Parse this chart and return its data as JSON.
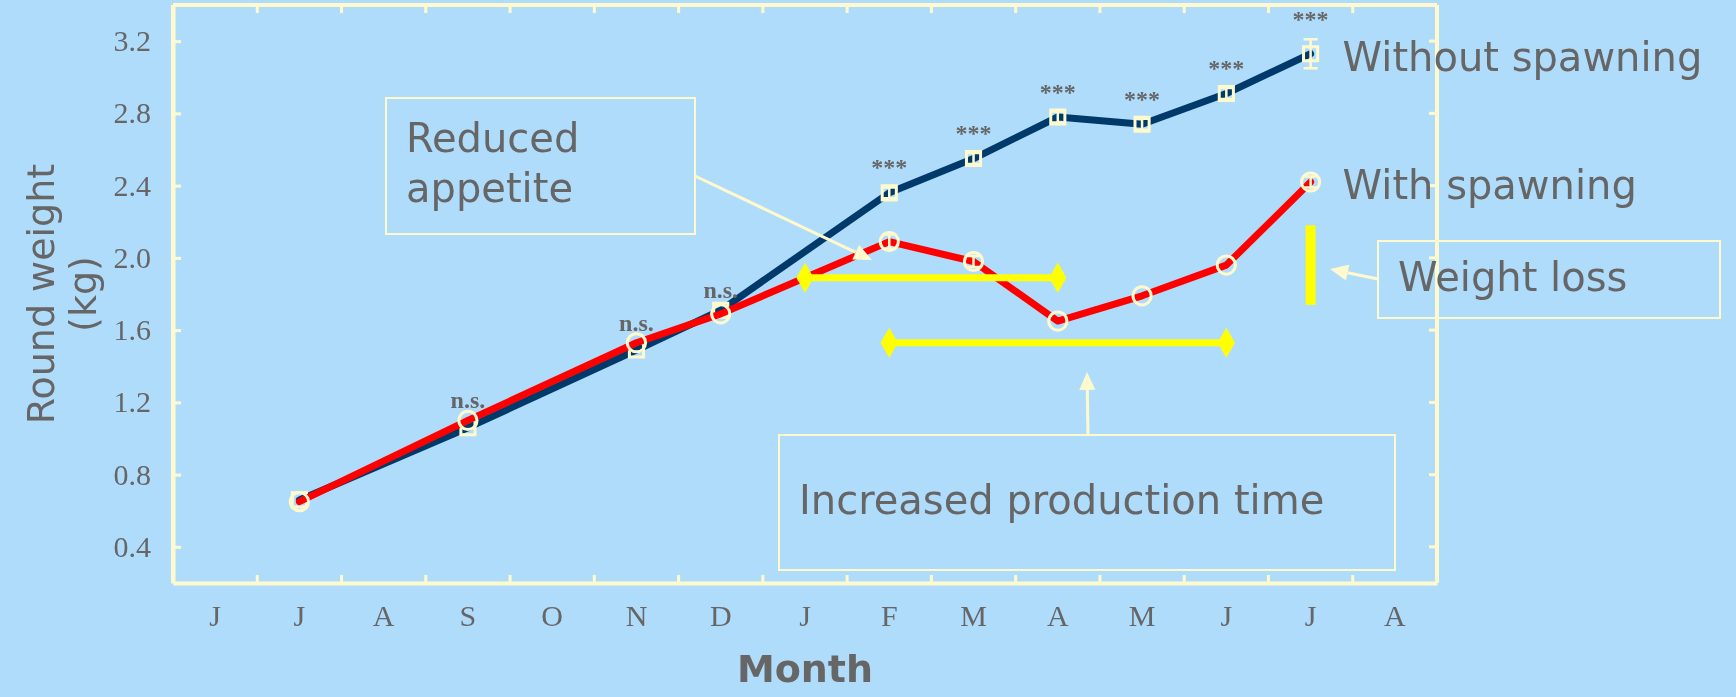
{
  "chart_data": {
    "type": "line",
    "xlabel": "Month",
    "ylabel": "Round weight (kg)",
    "categories": [
      "J",
      "J",
      "A",
      "S",
      "O",
      "N",
      "D",
      "J",
      "F",
      "M",
      "A",
      "M",
      "J",
      "J",
      "A"
    ],
    "ylim": [
      0.2,
      3.4
    ],
    "yticks": [
      0.4,
      0.8,
      1.2,
      1.6,
      {
        "value": 2,
        "label": "2.0"
      },
      2.4,
      2.8,
      3.2
    ],
    "grid": false,
    "legend": "right",
    "series": [
      {
        "name": "Without spawning",
        "color": "#003a6b",
        "marker": "square",
        "values": [
          null,
          0.66,
          null,
          1.06,
          null,
          1.49,
          1.71,
          null,
          2.36,
          2.55,
          2.78,
          2.74,
          2.91,
          3.13,
          null
        ],
        "errors": [
          null,
          null,
          null,
          null,
          null,
          null,
          null,
          null,
          0.03,
          0.03,
          0.03,
          0.03,
          0.03,
          0.08,
          null
        ],
        "value_labels": [
          null,
          null,
          null,
          "n.s.",
          null,
          "n.s.",
          "n.s.",
          null,
          "***",
          "***",
          "***",
          "***",
          "***",
          "***",
          null
        ]
      },
      {
        "name": "With spawning",
        "color": "#ff0000",
        "marker": "circle",
        "values": [
          null,
          0.65,
          null,
          1.1,
          null,
          1.53,
          1.69,
          null,
          2.09,
          1.98,
          1.65,
          1.79,
          1.96,
          2.42,
          null
        ],
        "errors": [
          null,
          null,
          null,
          null,
          null,
          null,
          null,
          null,
          0.04,
          0.03,
          null,
          null,
          null,
          0.03,
          null
        ]
      },
      {
        "color": "#ffff00",
        "marker": "diamond",
        "values": [
          null,
          null,
          null,
          null,
          null,
          null,
          null,
          1.89,
          null,
          null,
          1.89,
          null,
          null,
          null,
          null
        ]
      },
      {
        "color": "#ffff00",
        "marker": "diamond",
        "values": [
          null,
          null,
          null,
          null,
          null,
          null,
          null,
          null,
          1.53,
          null,
          null,
          null,
          1.53,
          null,
          null
        ]
      },
      {
        "type": "bar",
        "color": "#ffff00",
        "base": [
          null,
          null,
          null,
          null,
          null,
          null,
          null,
          null,
          null,
          null,
          null,
          null,
          null,
          1.74,
          null
        ],
        "values": [
          null,
          null,
          null,
          null,
          null,
          null,
          null,
          null,
          null,
          null,
          null,
          null,
          null,
          0.44,
          null
        ]
      }
    ],
    "annotations": [
      "Reduced appetite",
      "Increased production time",
      "Weight loss"
    ]
  }
}
